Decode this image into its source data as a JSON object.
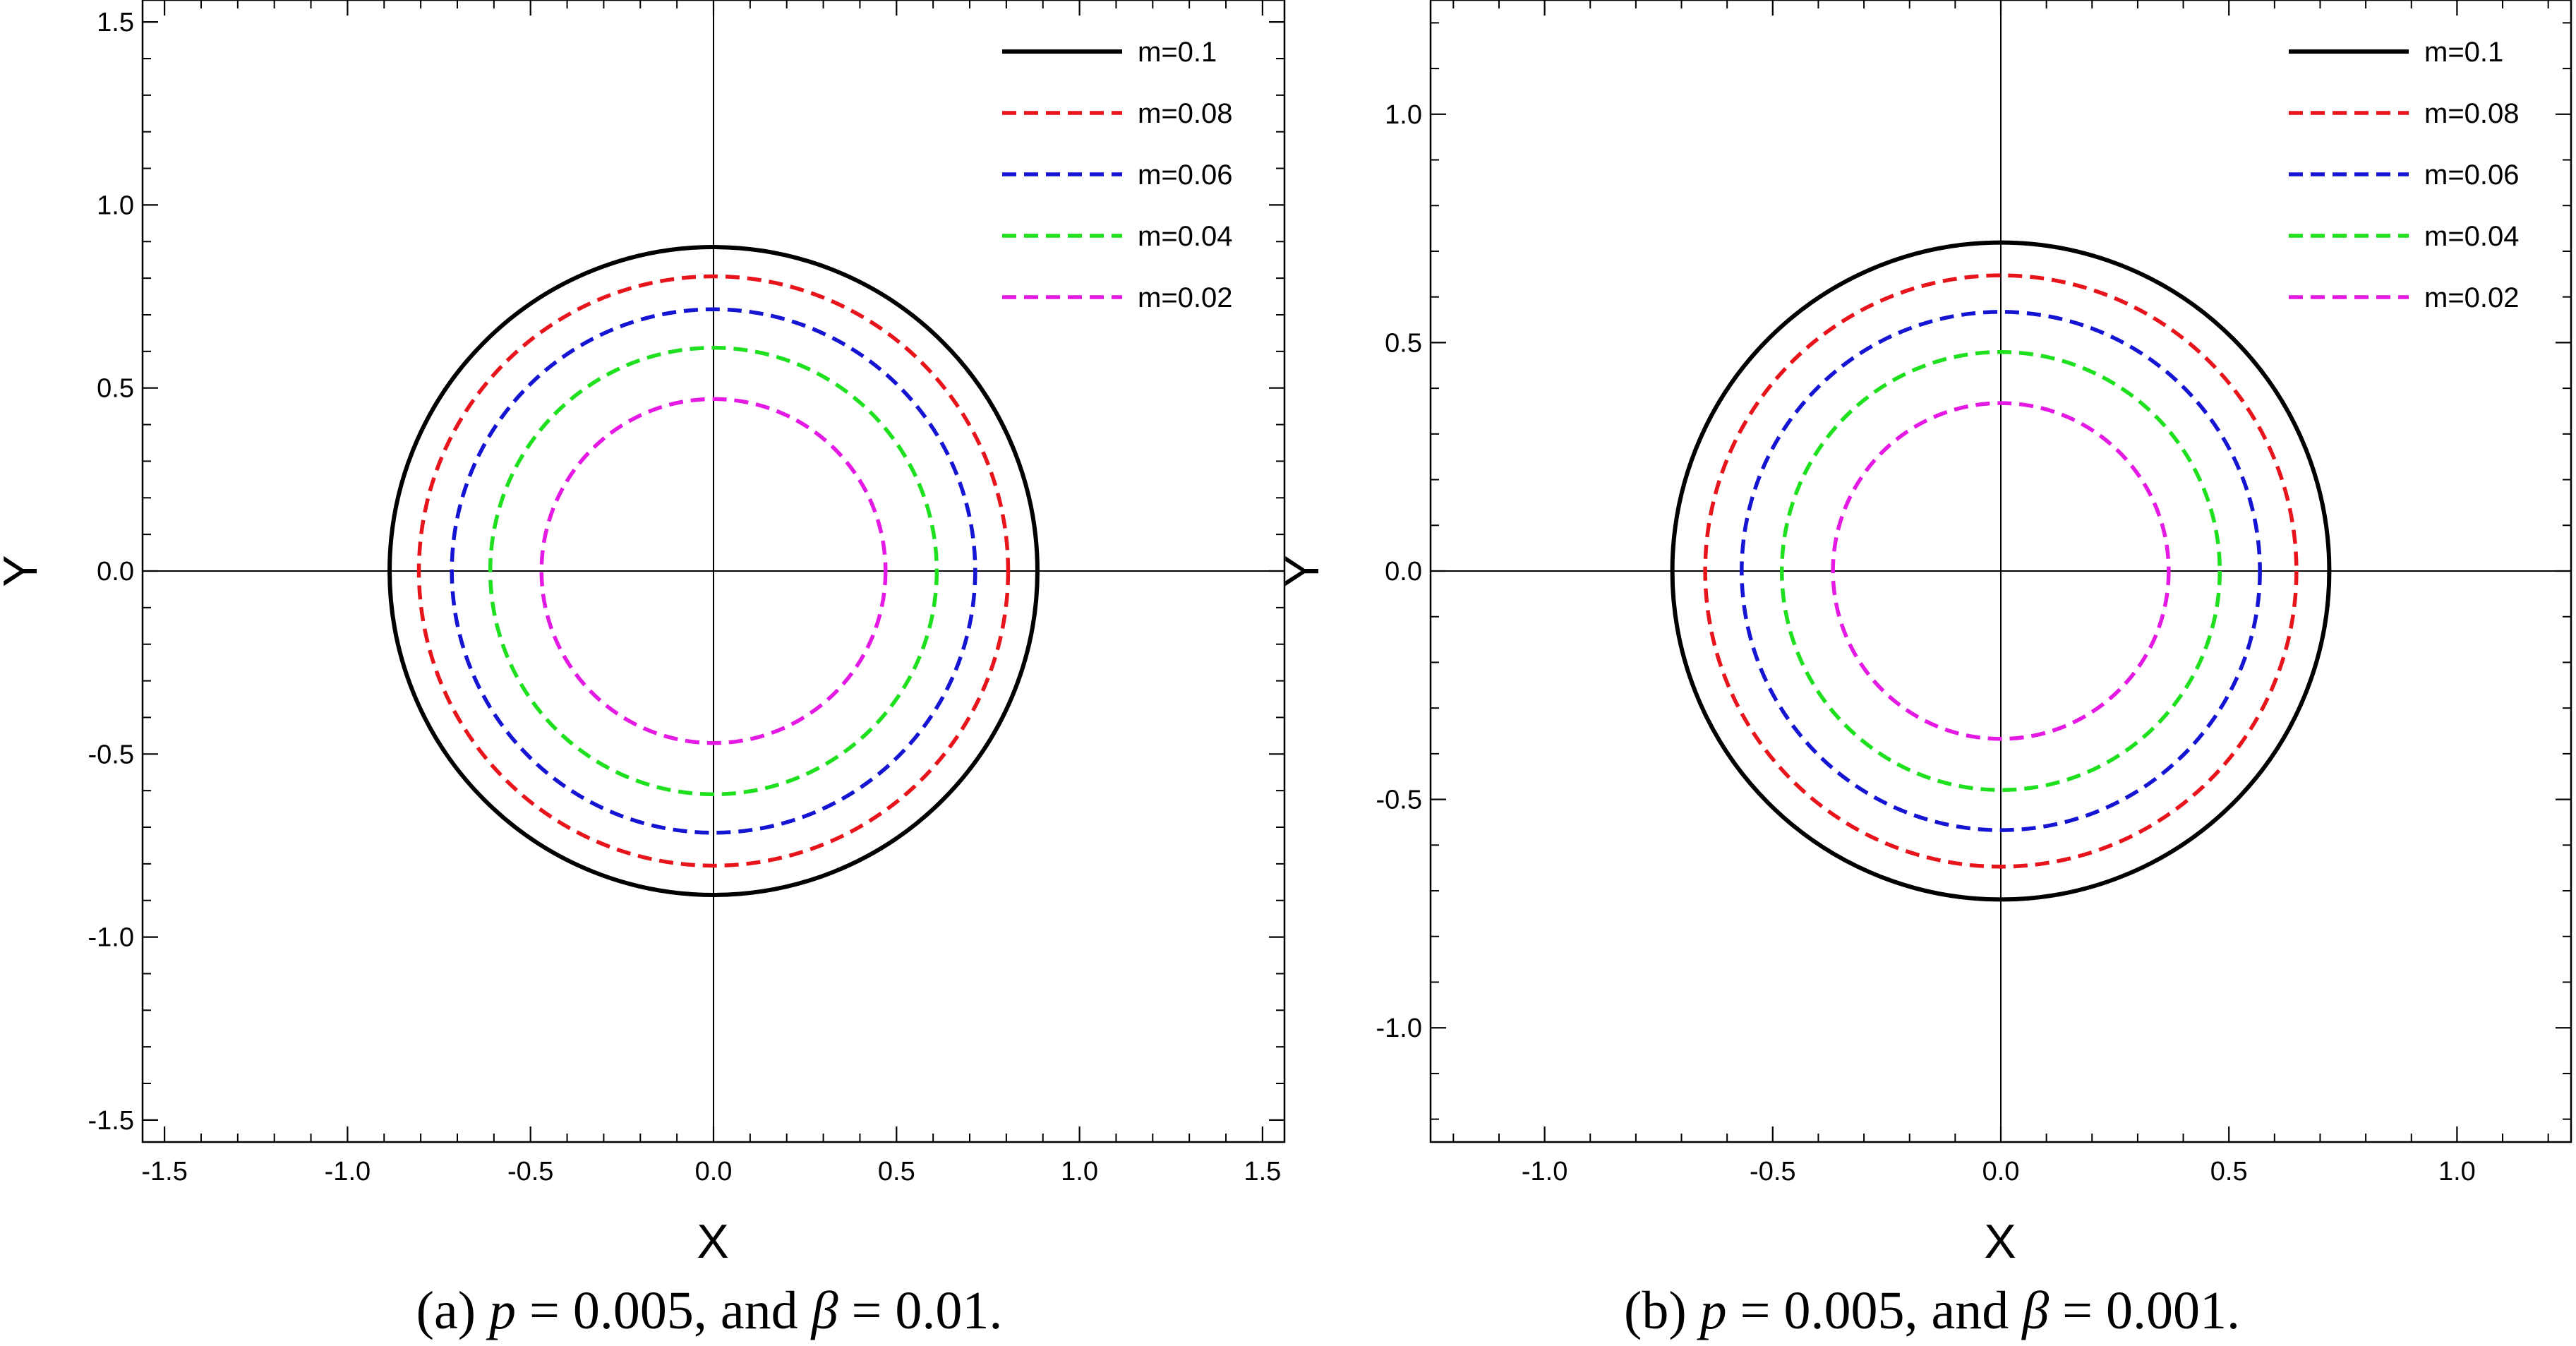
{
  "panels": [
    {
      "id": "a",
      "caption": {
        "label": "(a)",
        "p_sym": "p",
        "p_val": "= 0.005, and",
        "beta_sym": "β",
        "beta_val": "= 0.01."
      },
      "chart_data": {
        "type": "line",
        "title": "",
        "xlabel": "X",
        "ylabel": "Y",
        "xlim": [
          -1.56,
          1.56
        ],
        "ylim": [
          -1.56,
          1.56
        ],
        "xticks": [
          -1.5,
          -1.0,
          -0.5,
          0.0,
          0.5,
          1.0,
          1.5
        ],
        "yticks": [
          -1.5,
          -1.0,
          -0.5,
          0.0,
          0.5,
          1.0,
          1.5
        ],
        "xticklabels": [
          "-1.5",
          "-1.0",
          "-0.5",
          "0.0",
          "0.5",
          "1.0",
          "1.5"
        ],
        "yticklabels": [
          "-1.5",
          "-1.0",
          "-0.5",
          "0.0",
          "0.5",
          "1.0",
          "1.5"
        ],
        "minor_step": 0.1,
        "grid": false,
        "legend_position": "top-right",
        "series": [
          {
            "name": "m=0.1",
            "radius": 0.885,
            "color": "#000000",
            "style": "solid"
          },
          {
            "name": "m=0.08",
            "radius": 0.805,
            "color": "#e8141b",
            "style": "dashed"
          },
          {
            "name": "m=0.06",
            "radius": 0.715,
            "color": "#1414d2",
            "style": "dashed"
          },
          {
            "name": "m=0.04",
            "radius": 0.61,
            "color": "#1fe01f",
            "style": "dashed"
          },
          {
            "name": "m=0.02",
            "radius": 0.47,
            "color": "#e41ae4",
            "style": "dashed"
          }
        ]
      }
    },
    {
      "id": "b",
      "caption": {
        "label": "(b)",
        "p_sym": "p",
        "p_val": "= 0.005, and",
        "beta_sym": "β",
        "beta_val": "= 0.001."
      },
      "chart_data": {
        "type": "line",
        "title": "",
        "xlabel": "X",
        "ylabel": "Y",
        "xlim": [
          -1.25,
          1.25
        ],
        "ylim": [
          -1.25,
          1.25
        ],
        "xticks": [
          -1.0,
          -0.5,
          0.0,
          0.5,
          1.0
        ],
        "yticks": [
          -1.0,
          -0.5,
          0.0,
          0.5,
          1.0
        ],
        "xticklabels": [
          "-1.0",
          "-0.5",
          "0.0",
          "0.5",
          "1.0"
        ],
        "yticklabels": [
          "-1.0",
          "-0.5",
          "0.0",
          "0.5",
          "1.0"
        ],
        "minor_step": 0.1,
        "grid": false,
        "legend_position": "top-right",
        "series": [
          {
            "name": "m=0.1",
            "radius": 0.72,
            "color": "#000000",
            "style": "solid"
          },
          {
            "name": "m=0.08",
            "radius": 0.648,
            "color": "#e8141b",
            "style": "dashed"
          },
          {
            "name": "m=0.06",
            "radius": 0.568,
            "color": "#1414d2",
            "style": "dashed"
          },
          {
            "name": "m=0.04",
            "radius": 0.48,
            "color": "#1fe01f",
            "style": "dashed"
          },
          {
            "name": "m=0.02",
            "radius": 0.368,
            "color": "#e41ae4",
            "style": "dashed"
          }
        ]
      }
    }
  ]
}
